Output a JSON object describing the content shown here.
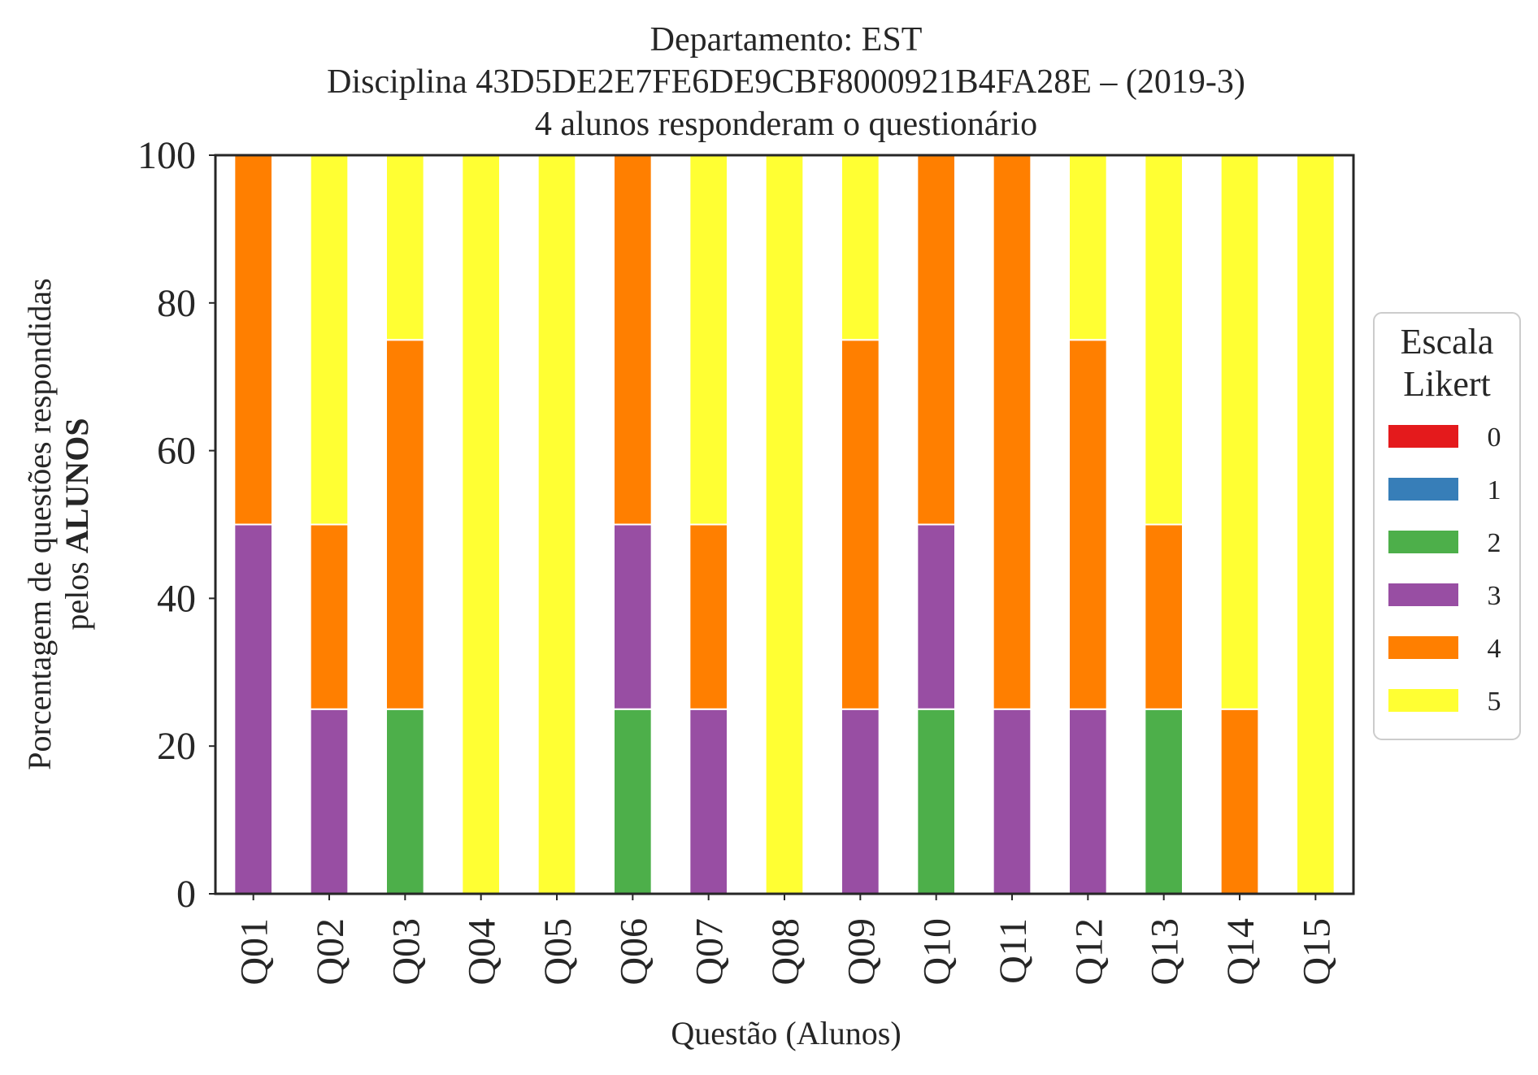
{
  "chart_data": {
    "type": "bar",
    "stacked": true,
    "title_lines": [
      "Departamento: EST",
      "Disciplina 43D5DE2E7FE6DE9CBF8000921B4FA28E – (2019-3)",
      "4 alunos responderam o questionário"
    ],
    "xlabel": "Questão (Alunos)",
    "ylabel_line1": "Porcentagem de questões respondidas",
    "ylabel_line2_prefix": "pelos ",
    "ylabel_line2_bold": "ALUNOS",
    "ylim": [
      0,
      100
    ],
    "yticks": [
      "0",
      "20",
      "40",
      "60",
      "80",
      "100"
    ],
    "grid": false,
    "legend": {
      "title_lines": [
        "Escala",
        "Likert"
      ],
      "placement": "right-center"
    },
    "categories": [
      "Q01",
      "Q02",
      "Q03",
      "Q04",
      "Q05",
      "Q06",
      "Q07",
      "Q08",
      "Q09",
      "Q10",
      "Q11",
      "Q12",
      "Q13",
      "Q14",
      "Q15"
    ],
    "series": [
      {
        "name": "0",
        "color": "#e41a1c",
        "values": [
          0,
          0,
          0,
          0,
          0,
          0,
          0,
          0,
          0,
          0,
          0,
          0,
          0,
          0,
          0
        ]
      },
      {
        "name": "1",
        "color": "#377eb8",
        "values": [
          0,
          0,
          0,
          0,
          0,
          0,
          0,
          0,
          0,
          0,
          0,
          0,
          0,
          0,
          0
        ]
      },
      {
        "name": "2",
        "color": "#4daf4a",
        "values": [
          0,
          0,
          25,
          0,
          0,
          25,
          0,
          0,
          0,
          25,
          0,
          0,
          25,
          0,
          0
        ]
      },
      {
        "name": "3",
        "color": "#984ea3",
        "values": [
          50,
          25,
          0,
          0,
          0,
          25,
          25,
          0,
          25,
          25,
          25,
          25,
          0,
          0,
          0
        ]
      },
      {
        "name": "4",
        "color": "#ff7f00",
        "values": [
          50,
          25,
          50,
          0,
          0,
          50,
          25,
          0,
          50,
          50,
          75,
          50,
          25,
          25,
          0
        ]
      },
      {
        "name": "5",
        "color": "#ffff33",
        "values": [
          0,
          50,
          25,
          100,
          100,
          0,
          50,
          100,
          25,
          0,
          0,
          25,
          50,
          75,
          100
        ]
      }
    ]
  }
}
